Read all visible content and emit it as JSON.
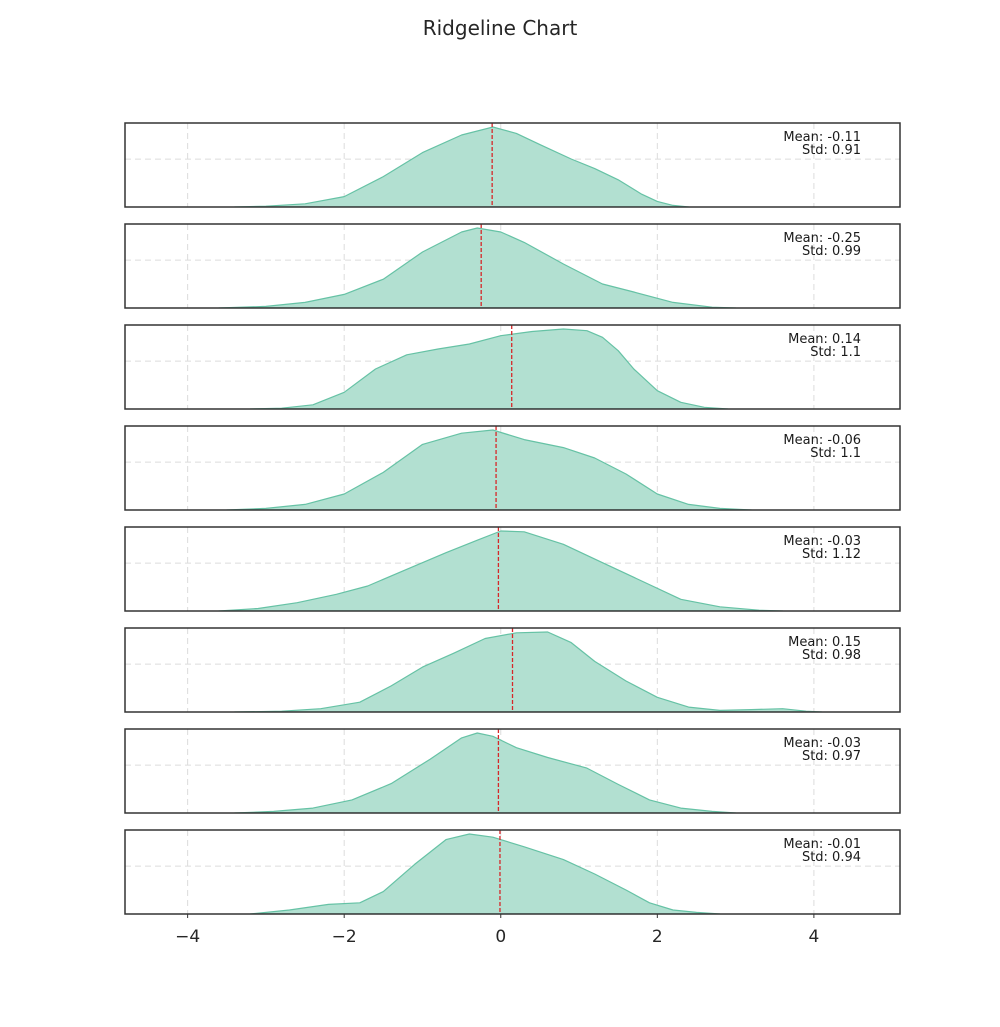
{
  "chart_data": {
    "type": "area",
    "title": "Ridgeline Chart",
    "xlim": [
      -4.8,
      5.1
    ],
    "xticks": [
      -4,
      -2,
      0,
      2,
      4
    ],
    "xtick_labels": [
      "−4",
      "−2",
      "0",
      "2",
      "4"
    ],
    "grid": true,
    "colors": {
      "fill": "#b2e0d1",
      "line": "#66c2a5",
      "mean_line": "#d62728",
      "frame": "#333333",
      "grid": "#dcdcdc"
    },
    "annotation_placement": "top-right",
    "series": [
      {
        "mean": -0.11,
        "std": 0.91,
        "mean_label": "Mean: -0.11",
        "std_label": "Std: 0.91",
        "x": [
          -3.4,
          -3.0,
          -2.5,
          -2.0,
          -1.5,
          -1.0,
          -0.5,
          -0.1,
          0.2,
          0.5,
          0.9,
          1.2,
          1.5,
          1.8,
          2.0,
          2.2,
          2.4
        ],
        "y": [
          0,
          0.01,
          0.04,
          0.13,
          0.38,
          0.68,
          0.9,
          1.0,
          0.92,
          0.78,
          0.6,
          0.48,
          0.34,
          0.16,
          0.07,
          0.02,
          0
        ]
      },
      {
        "mean": -0.25,
        "std": 0.99,
        "mean_label": "Mean: -0.25",
        "std_label": "Std: 0.99",
        "x": [
          -3.6,
          -3.0,
          -2.5,
          -2.0,
          -1.5,
          -1.0,
          -0.5,
          -0.3,
          0.0,
          0.3,
          0.8,
          1.3,
          1.7,
          2.2,
          2.7,
          3.0
        ],
        "y": [
          0,
          0.02,
          0.07,
          0.17,
          0.36,
          0.7,
          0.95,
          1.0,
          0.95,
          0.82,
          0.55,
          0.3,
          0.2,
          0.07,
          0.01,
          0
        ]
      },
      {
        "mean": 0.14,
        "std": 1.1,
        "mean_label": "Mean: 0.14",
        "std_label": "Std: 1.1",
        "x": [
          -3.2,
          -2.8,
          -2.4,
          -2.0,
          -1.6,
          -1.2,
          -0.8,
          -0.4,
          0.0,
          0.4,
          0.8,
          1.1,
          1.3,
          1.5,
          1.7,
          2.0,
          2.3,
          2.6,
          2.9
        ],
        "y": [
          0,
          0.01,
          0.05,
          0.2,
          0.48,
          0.65,
          0.72,
          0.78,
          0.88,
          0.93,
          0.96,
          0.94,
          0.86,
          0.7,
          0.48,
          0.22,
          0.08,
          0.02,
          0
        ]
      },
      {
        "mean": -0.06,
        "std": 1.1,
        "mean_label": "Mean: -0.06",
        "std_label": "Std: 1.1",
        "x": [
          -3.5,
          -3.0,
          -2.5,
          -2.0,
          -1.5,
          -1.0,
          -0.5,
          -0.1,
          0.3,
          0.8,
          1.2,
          1.6,
          2.0,
          2.4,
          2.8,
          3.2
        ],
        "y": [
          0,
          0.02,
          0.07,
          0.2,
          0.47,
          0.82,
          0.96,
          1.0,
          0.88,
          0.78,
          0.65,
          0.45,
          0.2,
          0.07,
          0.02,
          0
        ]
      },
      {
        "mean": -0.03,
        "std": 1.12,
        "mean_label": "Mean: -0.03",
        "std_label": "Std: 1.12",
        "x": [
          -3.6,
          -3.1,
          -2.6,
          -2.1,
          -1.7,
          -1.2,
          -0.7,
          -0.3,
          0.0,
          0.3,
          0.8,
          1.3,
          1.8,
          2.3,
          2.8,
          3.3,
          3.6
        ],
        "y": [
          0,
          0.03,
          0.1,
          0.2,
          0.3,
          0.5,
          0.7,
          0.85,
          0.96,
          0.95,
          0.8,
          0.58,
          0.36,
          0.14,
          0.05,
          0.01,
          0
        ]
      },
      {
        "mean": 0.15,
        "std": 0.98,
        "mean_label": "Mean: 0.15",
        "std_label": "Std: 0.98",
        "x": [
          -3.4,
          -2.8,
          -2.3,
          -1.8,
          -1.4,
          -1.0,
          -0.6,
          -0.2,
          0.2,
          0.6,
          0.9,
          1.2,
          1.6,
          2.0,
          2.4,
          2.8,
          3.2,
          3.6,
          3.9,
          4.1
        ],
        "y": [
          0,
          0.01,
          0.04,
          0.12,
          0.32,
          0.55,
          0.72,
          0.9,
          0.97,
          0.98,
          0.85,
          0.62,
          0.38,
          0.18,
          0.06,
          0.02,
          0.03,
          0.04,
          0.01,
          0
        ]
      },
      {
        "mean": -0.03,
        "std": 0.97,
        "mean_label": "Mean: -0.03",
        "std_label": "Std: 0.97",
        "x": [
          -3.4,
          -2.9,
          -2.4,
          -1.9,
          -1.4,
          -0.9,
          -0.5,
          -0.3,
          -0.1,
          0.2,
          0.6,
          1.1,
          1.5,
          1.9,
          2.3,
          2.7,
          3.0
        ],
        "y": [
          0,
          0.02,
          0.06,
          0.16,
          0.36,
          0.66,
          0.92,
          0.98,
          0.94,
          0.8,
          0.68,
          0.55,
          0.35,
          0.16,
          0.06,
          0.02,
          0
        ]
      },
      {
        "mean": -0.01,
        "std": 0.94,
        "mean_label": "Mean: -0.01",
        "std_label": "Std: 0.94",
        "x": [
          -3.2,
          -2.7,
          -2.2,
          -1.8,
          -1.5,
          -1.1,
          -0.7,
          -0.4,
          -0.1,
          0.3,
          0.8,
          1.2,
          1.6,
          1.9,
          2.2,
          2.5,
          2.8
        ],
        "y": [
          0,
          0.05,
          0.12,
          0.14,
          0.28,
          0.62,
          0.93,
          1.0,
          0.96,
          0.84,
          0.68,
          0.5,
          0.3,
          0.14,
          0.05,
          0.02,
          0
        ]
      }
    ]
  }
}
